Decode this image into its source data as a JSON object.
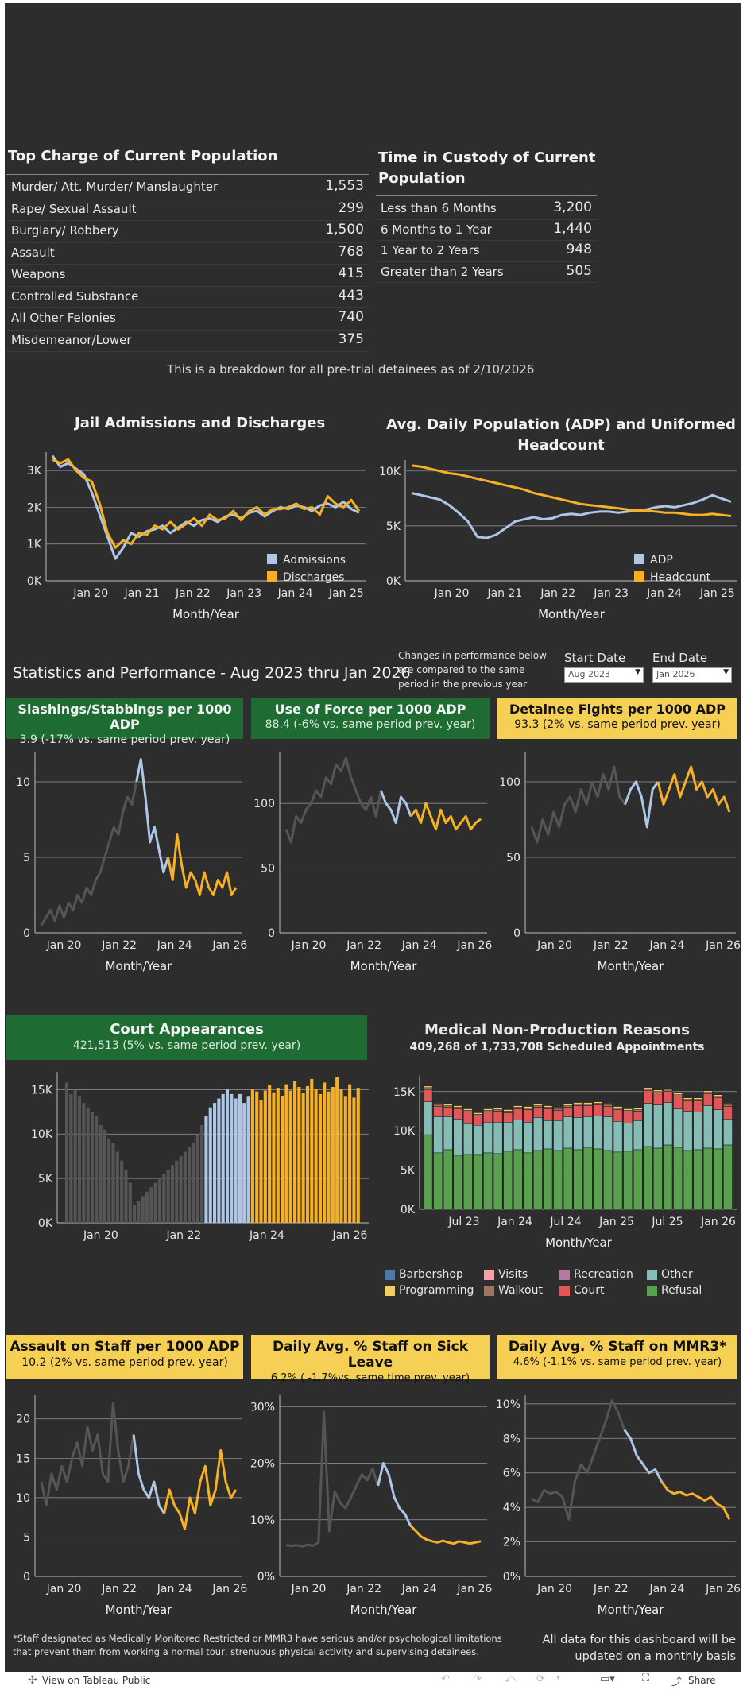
{
  "colors": {
    "panel": "#2d2d2d",
    "blue": "#aec7e8",
    "orange": "#f5b025",
    "gray": "#555555",
    "green": "#1e6b34",
    "yellow": "#f6cf55",
    "grid": "#9a9a9a"
  },
  "top_charge": {
    "title": "Top Charge of Current Population",
    "rows": [
      {
        "label": "Murder/ Att. Murder/ Manslaughter",
        "value": "1,553"
      },
      {
        "label": "Rape/ Sexual Assault",
        "value": "299"
      },
      {
        "label": "Burglary/ Robbery",
        "value": "1,500"
      },
      {
        "label": "Assault",
        "value": "768"
      },
      {
        "label": "Weapons",
        "value": "415"
      },
      {
        "label": "Controlled Substance",
        "value": "443"
      },
      {
        "label": "All Other Felonies",
        "value": "740"
      },
      {
        "label": "Misdemeanor/Lower",
        "value": "375"
      }
    ]
  },
  "time_in_custody": {
    "title_line1": "Time in Custody of Current",
    "title_line2": "Population",
    "rows": [
      {
        "label": "Less than 6 Months",
        "value": "3,200"
      },
      {
        "label": "6 Months to 1 Year",
        "value": "1,440"
      },
      {
        "label": "1 Year to 2 Years",
        "value": "948"
      },
      {
        "label": "Greater than 2 Years",
        "value": "505"
      }
    ]
  },
  "breakdown_note": "This is a breakdown for all pre-trial detainees as of 2/10/2026",
  "admissions": {
    "title": "Jail Admissions and Discharges",
    "legend": [
      "Admissions",
      "Discharges"
    ],
    "yticks": [
      "3K",
      "2K",
      "1K",
      "0K"
    ],
    "xticks": [
      "Jan 20",
      "Jan 21",
      "Jan 22",
      "Jan 23",
      "Jan 24",
      "Jan 25"
    ],
    "xlabel": "Month/Year"
  },
  "adp": {
    "title_line1": "Avg. Daily Population (ADP) and Uniformed",
    "title_line2": "Headcount",
    "legend": [
      "ADP",
      "Headcount"
    ],
    "yticks": [
      "10K",
      "5K",
      "0K"
    ],
    "xticks": [
      "Jan 20",
      "Jan 21",
      "Jan 22",
      "Jan 23",
      "Jan 24",
      "Jan 25"
    ],
    "xlabel": "Month/Year"
  },
  "stats": {
    "title": "Statistics and Performance - Aug 2023 thru Jan 2026",
    "note_line1": "Changes in performance below",
    "note_line2": "are compared to the same",
    "note_line3": "period in the previous year",
    "start_label": "Start Date",
    "end_label": "End Date",
    "start_value": "Aug 2023",
    "end_value": "Jan 2026"
  },
  "slashings": {
    "title": "Slashings/Stabbings per 1000 ADP",
    "subtitle": "3.9 (-17% vs. same period prev. year)",
    "yticks": [
      "10",
      "5",
      "0"
    ],
    "xticks": [
      "Jan 20",
      "Jan 22",
      "Jan 24",
      "Jan 26"
    ],
    "xlabel": "Month/Year"
  },
  "force": {
    "title": "Use of Force per 1000 ADP",
    "subtitle": "88.4 (-6% vs. same period prev. year)",
    "yticks": [
      "100",
      "50",
      "0"
    ],
    "xticks": [
      "Jan 20",
      "Jan 22",
      "Jan 24",
      "Jan 26"
    ],
    "xlabel": "Month/Year"
  },
  "fights": {
    "title": "Detainee Fights per 1000 ADP",
    "subtitle": "93.3 (2% vs. same period prev. year)",
    "yticks": [
      "100",
      "50",
      "0"
    ],
    "xticks": [
      "Jan 20",
      "Jan 22",
      "Jan 24",
      "Jan 26"
    ],
    "xlabel": "Month/Year"
  },
  "court": {
    "title": "Court Appearances",
    "subtitle": "421,513 (5% vs. same period prev. year)",
    "yticks": [
      "15K",
      "10K",
      "5K",
      "0K"
    ],
    "xticks": [
      "Jan 20",
      "Jan 22",
      "Jan 24",
      "Jan 26"
    ]
  },
  "medical": {
    "title": "Medical Non-Production Reasons",
    "subtitle": "409,268 of 1,733,708 Scheduled Appointments",
    "yticks": [
      "15K",
      "10K",
      "5K",
      "0K"
    ],
    "xticks": [
      "Jul 23",
      "Jan 24",
      "Jul 24",
      "Jan 25",
      "Jul 25",
      "Jan 26"
    ],
    "xlabel": "Month/Year",
    "legend": [
      {
        "name": "Barbershop",
        "color": "#4e79a7"
      },
      {
        "name": "Visits",
        "color": "#ff9da7"
      },
      {
        "name": "Recreation",
        "color": "#b07aa1"
      },
      {
        "name": "Other",
        "color": "#86bcb6"
      },
      {
        "name": "Programming",
        "color": "#f1ce63"
      },
      {
        "name": "Walkout",
        "color": "#9c755f"
      },
      {
        "name": "Court",
        "color": "#e15759"
      },
      {
        "name": "Refusal",
        "color": "#59a14f"
      }
    ]
  },
  "assault_staff": {
    "title": "Assault on Staff per 1000 ADP",
    "subtitle": "10.2 (2% vs. same period prev. year)",
    "yticks": [
      "20",
      "15",
      "10",
      "5",
      "0"
    ],
    "xticks": [
      "Jan 20",
      "Jan 22",
      "Jan 24",
      "Jan 26"
    ],
    "xlabel": "Month/Year"
  },
  "sick": {
    "title": "Daily Avg. % Staff on Sick Leave",
    "subtitle": "6.2% ( -1.7%vs. same time prev. year)",
    "yticks": [
      "30%",
      "20%",
      "10%",
      "0%"
    ],
    "xticks": [
      "Jan 20",
      "Jan 22",
      "Jan 24",
      "Jan 26"
    ],
    "xlabel": "Month/Year"
  },
  "mmr3": {
    "title": "Daily Avg. % Staff on MMR3*",
    "subtitle": "4.6% (-1.1% vs. same period prev. year)",
    "yticks": [
      "10%",
      "8%",
      "6%",
      "4%",
      "2%",
      "0%"
    ],
    "xticks": [
      "Jan 20",
      "Jan 22",
      "Jan 24",
      "Jan 26"
    ],
    "xlabel": "Month/Year"
  },
  "footnote_line1": "*Staff designated as Medically Monitored Restricted or MMR3 have serious and/or psychological limitations",
  "footnote_line2": "that prevent them from working a normal tour, strenuous physical activity  and supervising detainees.",
  "update_line1": "All data for this dashboard will be",
  "update_line2": "updated on a monthly basis",
  "footer": {
    "view_label": "View on Tableau Public",
    "share_label": "Share"
  },
  "chart_data": [
    {
      "type": "line",
      "title": "Jail Admissions and Discharges",
      "xlabel": "Month/Year",
      "ylim": [
        0,
        3500
      ],
      "series": [
        {
          "name": "Admissions",
          "values": [
            3400,
            3100,
            3200,
            3050,
            2900,
            2400,
            1800,
            1200,
            600,
            900,
            1300,
            1200,
            1350,
            1400,
            1500,
            1300,
            1450,
            1600,
            1500,
            1650,
            1700,
            1600,
            1750,
            1800,
            1700,
            1850,
            1900,
            1750,
            1900,
            2000,
            1950,
            2050,
            2000,
            1900,
            2050,
            2100,
            2000,
            2150,
            1950,
            1850
          ]
        },
        {
          "name": "Discharges",
          "values": [
            3300,
            3200,
            3300,
            3000,
            2800,
            2700,
            2100,
            1300,
            900,
            1100,
            1000,
            1300,
            1250,
            1500,
            1400,
            1600,
            1400,
            1550,
            1700,
            1500,
            1800,
            1650,
            1700,
            1900,
            1650,
            1900,
            2000,
            1800,
            1950,
            1950,
            2000,
            2100,
            1950,
            2000,
            1800,
            2300,
            2100,
            2000,
            2200,
            1900
          ]
        }
      ]
    },
    {
      "type": "line",
      "title": "Avg. Daily Population (ADP) and Uniformed Headcount",
      "xlabel": "Month/Year",
      "ylim": [
        0,
        11000
      ],
      "series": [
        {
          "name": "ADP",
          "values": [
            8000,
            7800,
            7600,
            7400,
            6900,
            6200,
            5400,
            4000,
            3900,
            4200,
            4800,
            5400,
            5600,
            5800,
            5600,
            5700,
            6000,
            6100,
            6000,
            6200,
            6300,
            6300,
            6200,
            6300,
            6400,
            6500,
            6700,
            6800,
            6700,
            6900,
            7100,
            7400,
            7800,
            7500,
            7200
          ]
        },
        {
          "name": "Headcount",
          "values": [
            10500,
            10400,
            10200,
            10000,
            9800,
            9700,
            9500,
            9300,
            9100,
            8900,
            8700,
            8500,
            8300,
            8000,
            7800,
            7600,
            7400,
            7200,
            7000,
            6900,
            6800,
            6700,
            6600,
            6500,
            6400,
            6400,
            6300,
            6200,
            6200,
            6100,
            6000,
            6000,
            6100,
            6000,
            5900
          ]
        }
      ]
    },
    {
      "type": "line",
      "title": "Slashings/Stabbings per 1000 ADP",
      "xlabel": "Month/Year",
      "ylim": [
        0,
        12
      ],
      "series": [
        {
          "name": "",
          "values": [
            0.5,
            1,
            1.5,
            0.8,
            1.8,
            1,
            2,
            1.5,
            2.5,
            2,
            3,
            2.5,
            3.5,
            4,
            5,
            6,
            7,
            6.5,
            8,
            9,
            8.5,
            10,
            11.5,
            9,
            6,
            7,
            5.5,
            4,
            5,
            3.5,
            6.5,
            4.5,
            3,
            4,
            3.5,
            2.5,
            4,
            3,
            2.5,
            3.5,
            3,
            4,
            2.5,
            3
          ]
        }
      ]
    },
    {
      "type": "line",
      "title": "Use of Force per 1000 ADP",
      "xlabel": "Month/Year",
      "ylim": [
        0,
        140
      ],
      "series": [
        {
          "name": "",
          "values": [
            80,
            70,
            90,
            85,
            95,
            100,
            110,
            105,
            120,
            115,
            130,
            125,
            135,
            120,
            110,
            100,
            95,
            105,
            90,
            110,
            100,
            95,
            85,
            105,
            100,
            90,
            95,
            85,
            100,
            90,
            80,
            95,
            85,
            90,
            80,
            85,
            90,
            80,
            85,
            88
          ]
        }
      ]
    },
    {
      "type": "line",
      "title": "Detainee Fights per 1000 ADP",
      "xlabel": "Month/Year",
      "ylim": [
        0,
        120
      ],
      "series": [
        {
          "name": "",
          "values": [
            70,
            60,
            75,
            65,
            80,
            70,
            85,
            90,
            80,
            95,
            85,
            100,
            90,
            105,
            95,
            110,
            90,
            85,
            95,
            100,
            90,
            70,
            95,
            100,
            85,
            95,
            105,
            90,
            100,
            110,
            95,
            100,
            90,
            95,
            85,
            90,
            80
          ]
        }
      ]
    },
    {
      "type": "bar",
      "title": "Court Appearances",
      "ylim": [
        0,
        17000
      ],
      "values": [
        15800,
        14500,
        15000,
        14200,
        13500,
        13000,
        12500,
        12000,
        11000,
        10500,
        9500,
        9000,
        8000,
        7000,
        6000,
        4500,
        2000,
        2500,
        3000,
        3500,
        4000,
        4500,
        5000,
        5500,
        6000,
        6500,
        7000,
        7500,
        8000,
        8500,
        9000,
        10000,
        11000,
        12000,
        13000,
        13500,
        14000,
        14500,
        15000,
        14500,
        14000,
        14500,
        13500,
        14200,
        15000,
        14800,
        13800,
        14900,
        15500,
        14700,
        15200,
        14300,
        15600,
        14900,
        16000,
        15300,
        14600,
        15400,
        16200,
        15100,
        14500,
        15800,
        14800,
        15300,
        16400,
        15000,
        14200,
        15600,
        14100,
        15200
      ]
    },
    {
      "type": "bar",
      "title": "Medical Non-Production Reasons",
      "ylim": [
        0,
        17000
      ],
      "categories_count": 31,
      "series": [
        {
          "name": "Refusal",
          "values": [
            9500,
            7200,
            7600,
            6800,
            7000,
            6900,
            7200,
            7100,
            7400,
            7600,
            7200,
            7500,
            7700,
            7500,
            7800,
            7600,
            7900,
            7700,
            7500,
            7300,
            7400,
            7600,
            8000,
            7800,
            8200,
            7900,
            7500,
            7600,
            7800,
            7700,
            8200
          ]
        },
        {
          "name": "Other",
          "values": [
            4200,
            4600,
            4200,
            4700,
            3900,
            3800,
            3900,
            4000,
            3700,
            3800,
            3900,
            4200,
            3600,
            3800,
            4000,
            4100,
            3900,
            4200,
            4300,
            3900,
            3600,
            3700,
            5500,
            5500,
            5400,
            4900,
            5000,
            4800,
            5400,
            5000,
            3300
          ]
        },
        {
          "name": "Court",
          "values": [
            1500,
            1300,
            1200,
            1300,
            1500,
            1200,
            1300,
            1400,
            1200,
            1400,
            1600,
            1300,
            1500,
            1300,
            1200,
            1500,
            1400,
            1400,
            1300,
            1500,
            1400,
            1200,
            1600,
            1500,
            1400,
            1600,
            1300,
            1400,
            1500,
            1500,
            1600
          ]
        },
        {
          "name": "Walkout",
          "values": [
            300,
            200,
            200,
            200,
            200,
            200,
            200,
            200,
            200,
            200,
            200,
            200,
            200,
            200,
            200,
            200,
            200,
            200,
            200,
            200,
            200,
            200,
            200,
            200,
            200,
            200,
            200,
            200,
            200,
            200,
            200
          ]
        },
        {
          "name": "Programming",
          "values": [
            200,
            200,
            200,
            200,
            200,
            200,
            200,
            200,
            200,
            200,
            200,
            200,
            200,
            200,
            200,
            200,
            200,
            200,
            200,
            200,
            200,
            200,
            200,
            200,
            200,
            200,
            200,
            200,
            200,
            200,
            200
          ]
        }
      ]
    },
    {
      "type": "line",
      "title": "Assault on Staff per 1000 ADP",
      "xlabel": "Month/Year",
      "ylim": [
        0,
        23
      ],
      "series": [
        {
          "name": "",
          "values": [
            12,
            9,
            13,
            11,
            14,
            12,
            15,
            17,
            14,
            19,
            16,
            18,
            13,
            12,
            22,
            16,
            12,
            14,
            18,
            13,
            11,
            10,
            12,
            9,
            8,
            11,
            9,
            8,
            6,
            10,
            8,
            12,
            14,
            9,
            11,
            16,
            12,
            10,
            11
          ]
        }
      ]
    },
    {
      "type": "line",
      "title": "Daily Avg. % Staff on Sick Leave",
      "xlabel": "Month/Year",
      "ylim": [
        0,
        32
      ],
      "series": [
        {
          "name": "",
          "values": [
            5.5,
            5.4,
            5.5,
            5.3,
            5.6,
            5.4,
            6,
            29,
            8,
            15,
            13,
            12,
            14,
            16,
            18,
            17,
            19,
            16,
            20,
            18,
            14,
            12,
            11,
            9,
            8,
            7,
            6.5,
            6.2,
            6,
            6.3,
            6,
            5.8,
            6.2,
            6,
            5.8,
            6,
            6.2
          ]
        }
      ]
    },
    {
      "type": "line",
      "title": "Daily Avg. % Staff on MMR3*",
      "xlabel": "Month/Year",
      "ylim": [
        0,
        10.5
      ],
      "series": [
        {
          "name": "",
          "values": [
            4.5,
            4.3,
            5,
            4.8,
            4.9,
            4.6,
            3.3,
            5.5,
            6.5,
            6,
            7,
            8,
            9,
            10.2,
            9.5,
            8.5,
            8,
            7,
            6.5,
            6,
            6.2,
            5.5,
            5,
            4.8,
            4.9,
            4.7,
            4.8,
            4.6,
            4.4,
            4.6,
            4.2,
            4,
            3.3
          ]
        }
      ]
    }
  ]
}
